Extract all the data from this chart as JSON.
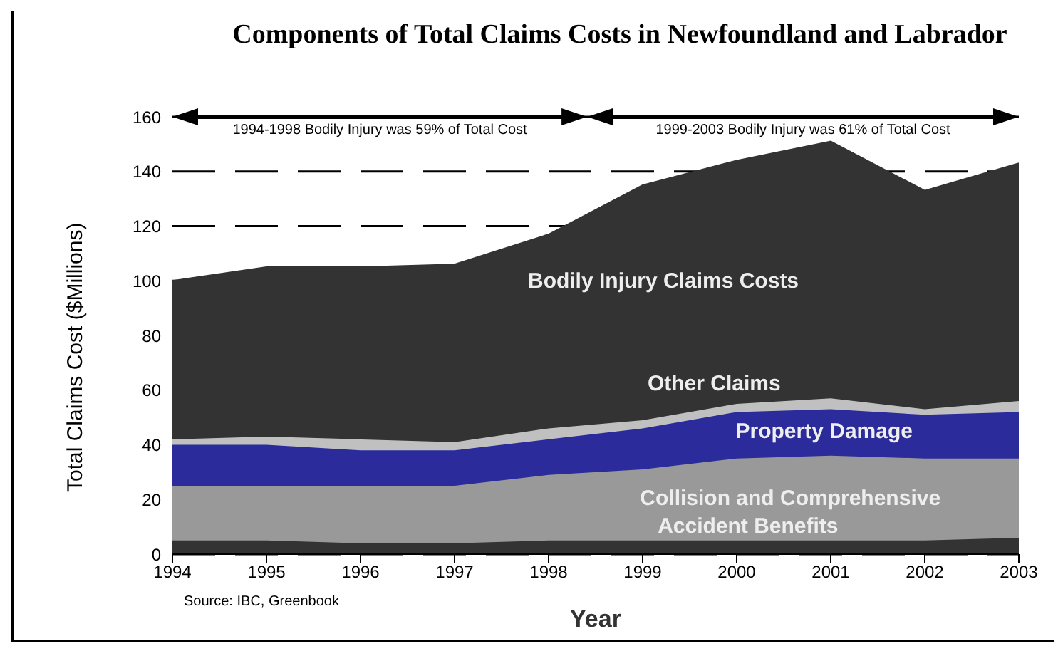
{
  "chart_data": {
    "type": "area",
    "stacked": true,
    "title": "Components of Total Claims Costs in Newfoundland and Labrador",
    "xlabel": "Year",
    "ylabel": "Total Claims Cost ($Millions)",
    "x": [
      1994,
      1995,
      1996,
      1997,
      1998,
      1999,
      2000,
      2001,
      2002,
      2003
    ],
    "xlim": [
      1994,
      2003
    ],
    "xticks": [
      1994,
      1995,
      1996,
      1997,
      1998,
      1999,
      2000,
      2001,
      2002,
      2003
    ],
    "ylim": [
      0,
      160
    ],
    "yticks": [
      0,
      20,
      40,
      60,
      80,
      100,
      120,
      140,
      160
    ],
    "series": [
      {
        "name": "Accident Benefits",
        "color": "#333333",
        "values": [
          5,
          5,
          4,
          4,
          5,
          5,
          5,
          5,
          5,
          6
        ]
      },
      {
        "name": "Collision and Comprehensive",
        "color": "#999999",
        "values": [
          20,
          20,
          21,
          21,
          24,
          26,
          30,
          31,
          30,
          29
        ]
      },
      {
        "name": "Property Damage",
        "color": "#2b2b9b",
        "values": [
          15,
          15,
          13,
          13,
          13,
          15,
          17,
          17,
          16,
          17
        ]
      },
      {
        "name": "Other Claims",
        "color": "#c0c0c0",
        "values": [
          2,
          3,
          4,
          3,
          4,
          3,
          3,
          4,
          2,
          4
        ]
      },
      {
        "name": "Bodily Injury Claims Costs",
        "color": "#333333",
        "values": [
          58,
          62,
          63,
          65,
          71,
          86,
          89,
          94,
          80,
          87
        ]
      }
    ],
    "annotations": [
      "1994-1998 Bodily Injury was 59% of Total Cost",
      "1999-2003 Bodily Injury was 61% of Total Cost",
      "Source: IBC, Greenbook"
    ],
    "legend": false,
    "grid": "y"
  }
}
